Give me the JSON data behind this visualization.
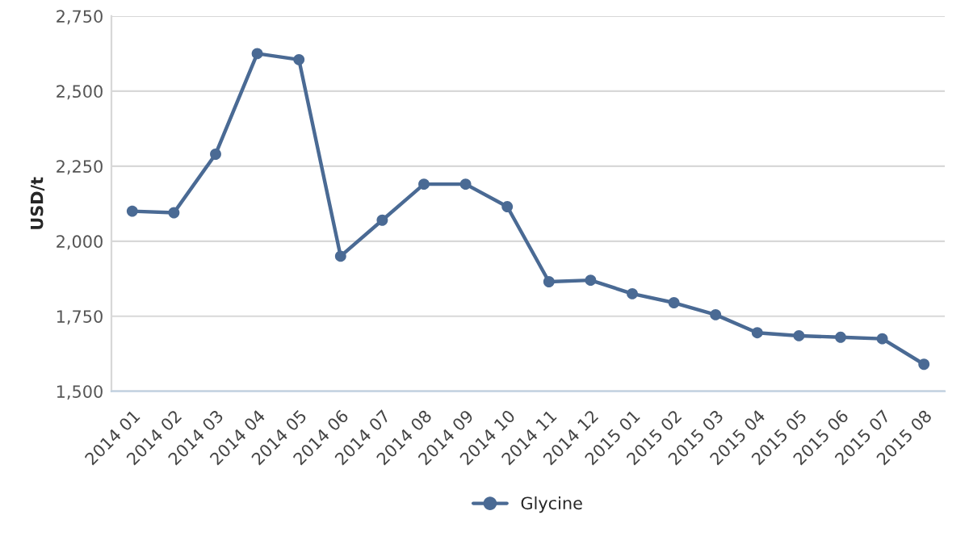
{
  "chart_data": {
    "type": "line",
    "ylabel": "USD/t",
    "categories": [
      "2014 01",
      "2014 02",
      "2014 03",
      "2014 04",
      "2014 05",
      "2014 06",
      "2014 07",
      "2014 08",
      "2014 09",
      "2014 10",
      "2014 11",
      "2014 12",
      "2015 01",
      "2015 02",
      "2015 03",
      "2015 04",
      "2015 05",
      "2015 06",
      "2015 07",
      "2015 08"
    ],
    "series": [
      {
        "name": "Glycine",
        "color": "#4a6a94",
        "values": [
          2100,
          2095,
          2290,
          2625,
          2605,
          1950,
          2070,
          2190,
          2190,
          2115,
          1865,
          1870,
          1825,
          1795,
          1755,
          1695,
          1685,
          1680,
          1675,
          1590
        ]
      }
    ],
    "ylim": [
      1500,
      2750
    ],
    "yticks": [
      {
        "value": 1500,
        "label": "1,500"
      },
      {
        "value": 1750,
        "label": "1,750"
      },
      {
        "value": 2000,
        "label": "2,000"
      },
      {
        "value": 2250,
        "label": "2,250"
      },
      {
        "value": 2500,
        "label": "2,500"
      },
      {
        "value": 2750,
        "label": "2,750"
      }
    ],
    "grid": "y",
    "legend": "bottom",
    "marker": "circle",
    "line_style": "solid"
  }
}
